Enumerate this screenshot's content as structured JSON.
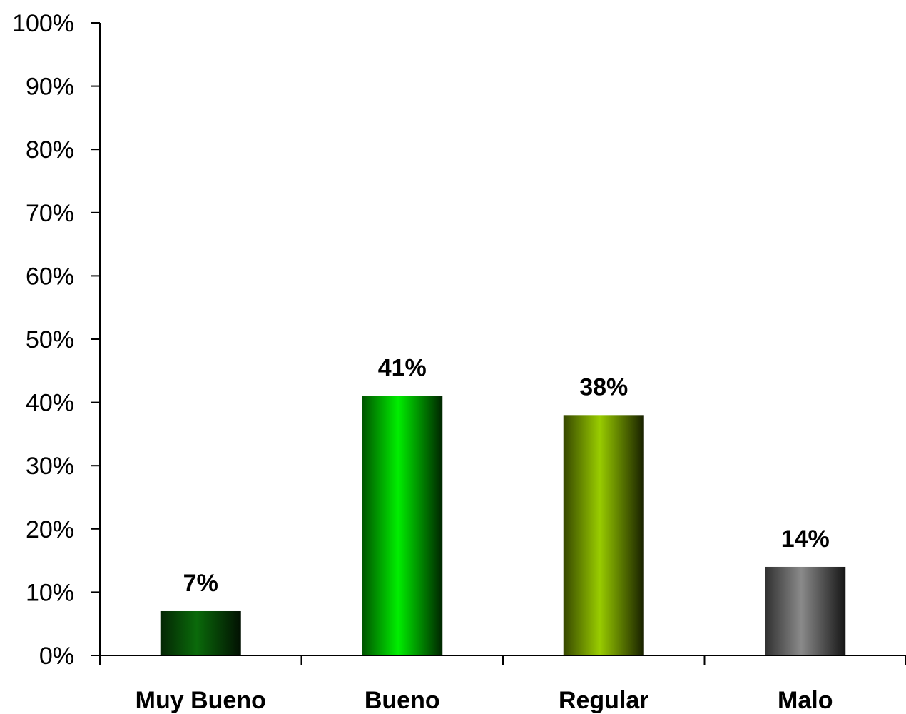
{
  "chart_data": {
    "type": "bar",
    "categories": [
      "Muy Bueno",
      "Bueno",
      "Regular",
      "Malo"
    ],
    "values": [
      7,
      41,
      38,
      14
    ],
    "value_labels": [
      "7%",
      "41%",
      "38%",
      "14%"
    ],
    "bar_colors": [
      "#0a6a0a",
      "#00ee00",
      "#99cc00",
      "#8a8a8a"
    ],
    "ylim": [
      0,
      100
    ],
    "yticks": [
      "0%",
      "10%",
      "20%",
      "30%",
      "40%",
      "50%",
      "60%",
      "70%",
      "80%",
      "90%",
      "100%"
    ],
    "grid": false,
    "legend": "none"
  }
}
